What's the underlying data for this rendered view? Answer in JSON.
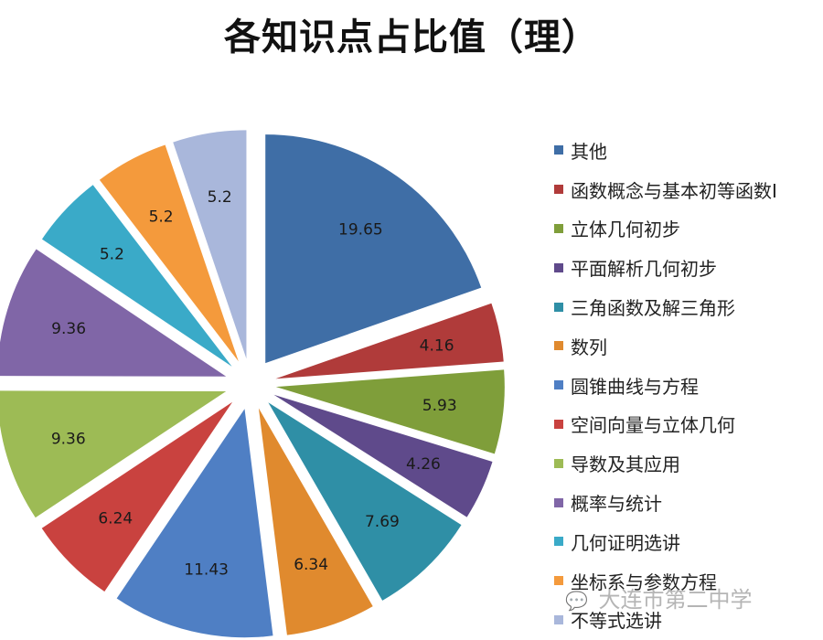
{
  "chart_data": {
    "type": "pie",
    "title": "各知识点占比值（理）",
    "legend_position": "right",
    "slices": [
      {
        "label": "其他",
        "value": 19.65,
        "value_label": "19.65",
        "color": "#3f6ea6"
      },
      {
        "label": "函数概念与基本初等函数Ⅰ",
        "value": 4.16,
        "value_label": "4.16",
        "color": "#b03b3a"
      },
      {
        "label": "立体几何初步",
        "value": 5.93,
        "value_label": "5.93",
        "color": "#7f9e3a"
      },
      {
        "label": "平面解析几何初步",
        "value": 4.26,
        "value_label": "4.26",
        "color": "#5f4a8b"
      },
      {
        "label": "三角函数及解三角形",
        "value": 7.69,
        "value_label": "7.69",
        "color": "#2f8fa6"
      },
      {
        "label": "数列",
        "value": 6.34,
        "value_label": "6.34",
        "color": "#e08a2e"
      },
      {
        "label": "圆锥曲线与方程",
        "value": 11.43,
        "value_label": "11.43",
        "color": "#4f7fc4"
      },
      {
        "label": "空间向量与立体几何",
        "value": 6.24,
        "value_label": "6.24",
        "color": "#c9423f"
      },
      {
        "label": "导数及其应用",
        "value": 9.36,
        "value_label": "9.36",
        "color": "#9dbb55"
      },
      {
        "label": "概率与统计",
        "value": 9.36,
        "value_label": "9.36",
        "color": "#8066a7"
      },
      {
        "label": "几何证明选讲",
        "value": 5.2,
        "value_label": "5.2",
        "color": "#3aaac8"
      },
      {
        "label": "坐标系与参数方程",
        "value": 5.2,
        "value_label": "5.2",
        "color": "#f49a3c"
      },
      {
        "label": "不等式选讲",
        "value": 5.2,
        "value_label": "5.2",
        "color": "#a9b7db"
      }
    ]
  },
  "watermark": {
    "text": "大连市第二中学",
    "icon": "wechat-icon"
  }
}
